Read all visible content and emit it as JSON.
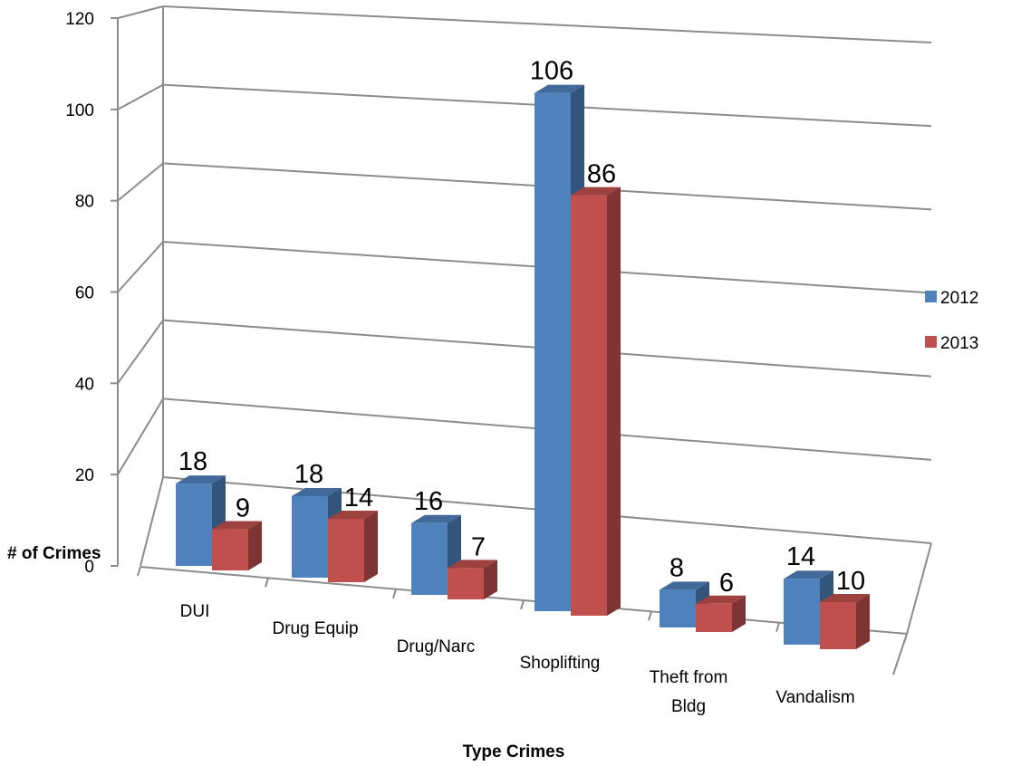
{
  "chart_data": {
    "type": "bar",
    "title": "",
    "xlabel": "Type Crimes",
    "ylabel": "# of Crimes",
    "ylim": [
      0,
      120
    ],
    "yticks": [
      0,
      20,
      40,
      60,
      80,
      100,
      120
    ],
    "grid": true,
    "legend_position": "right",
    "categories": [
      "DUI",
      "Drug Equip",
      "Drug/Narc",
      "Shoplifting",
      "Theft from Bldg",
      "Vandalism"
    ],
    "series": [
      {
        "name": "2012",
        "values": [
          18,
          18,
          16,
          106,
          8,
          14
        ],
        "color": "#4f81bd"
      },
      {
        "name": "2013",
        "values": [
          9,
          14,
          7,
          86,
          6,
          10
        ],
        "color": "#c0504d"
      }
    ]
  }
}
